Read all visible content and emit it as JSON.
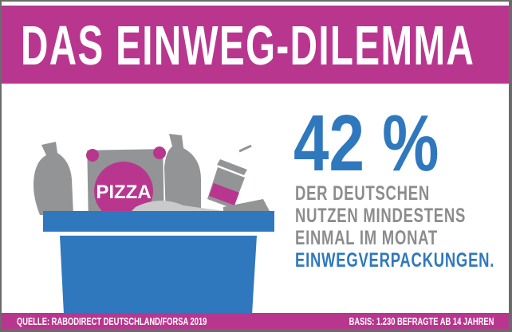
{
  "title": "DAS EINWEG-DILEMMA",
  "stat": {
    "percent": "42 %",
    "lines": [
      "DER DEUTSCHEN",
      "NUTZEN MINDESTENS",
      "EINMAL IM MONAT"
    ],
    "highlight": "EINWEGVERPACKUNGEN."
  },
  "illustration": {
    "pizza_label": "PIZZA"
  },
  "footer": {
    "source": "QUELLE: RABODIRECT DEUTSCHLAND/FORSA 2019",
    "basis": "BASIS: 1.230 BEFRAGTE AB 14 JAHREN"
  },
  "colors": {
    "magenta": "#b9368f",
    "blue": "#2f78be",
    "gray": "#8b8c8e"
  }
}
